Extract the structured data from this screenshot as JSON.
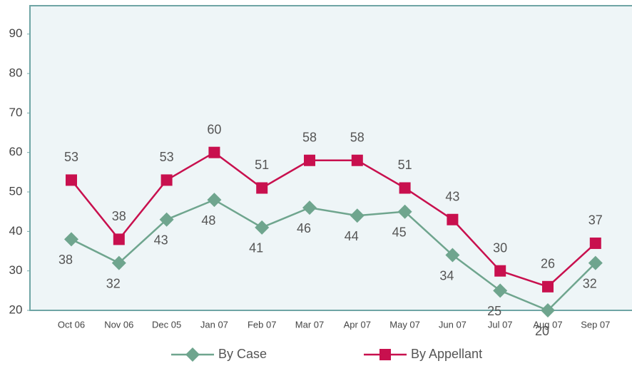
{
  "chart_data": {
    "type": "line",
    "categories": [
      "Oct 06",
      "Nov 06",
      "Dec 05",
      "Jan 07",
      "Feb 07",
      "Mar 07",
      "Apr 07",
      "May 07",
      "Jun 07",
      "Jul 07",
      "Aug 07",
      "Sep 07"
    ],
    "series": [
      {
        "name": "By Case",
        "color": "#6fa58e",
        "marker": "diamond",
        "values": [
          38,
          32,
          43,
          48,
          41,
          46,
          44,
          45,
          34,
          25,
          20,
          32
        ]
      },
      {
        "name": "By Appellant",
        "color": "#c8104e",
        "marker": "square",
        "values": [
          53,
          38,
          53,
          60,
          51,
          58,
          58,
          51,
          43,
          30,
          26,
          37
        ]
      }
    ],
    "ylim": [
      20,
      97
    ],
    "yticks": [
      20,
      30,
      40,
      50,
      60,
      70,
      80,
      90
    ]
  }
}
